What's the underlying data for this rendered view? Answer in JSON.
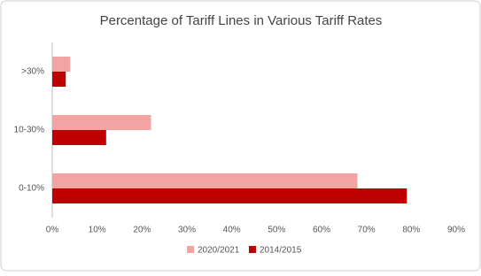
{
  "chart_data": {
    "type": "hbar",
    "title": "Percentage of Tariff Lines in Various Tariff Rates",
    "categories": [
      ">30%",
      "10-30%",
      "0-10%"
    ],
    "series": [
      {
        "name": "2020/2021",
        "color": "#f4a3a3",
        "values": [
          4,
          22,
          68
        ]
      },
      {
        "name": "2014/2015",
        "color": "#c00000",
        "values": [
          3,
          12,
          79
        ]
      }
    ],
    "xlim": [
      0,
      90
    ],
    "xticks": [
      {
        "value": 0,
        "label": "0%"
      },
      {
        "value": 10,
        "label": "10%"
      },
      {
        "value": 20,
        "label": "20%"
      },
      {
        "value": 30,
        "label": "30%"
      },
      {
        "value": 40,
        "label": "40%"
      },
      {
        "value": 50,
        "label": "50%"
      },
      {
        "value": 60,
        "label": "60%"
      },
      {
        "value": 70,
        "label": "70%"
      },
      {
        "value": 80,
        "label": "80%"
      },
      {
        "value": 90,
        "label": "90%"
      }
    ],
    "grid": false,
    "legend": "bottom"
  }
}
